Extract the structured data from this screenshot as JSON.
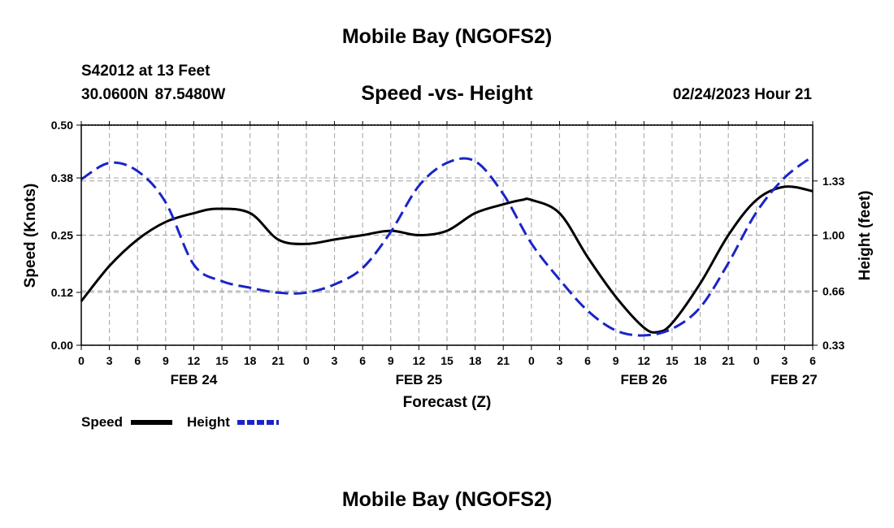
{
  "header": {
    "title": "Mobile Bay (NGOFS2)",
    "station": "S42012 at 13 Feet",
    "coords": "30.0600N  87.5480W",
    "subtitle": "Speed -vs- Height",
    "datetime": "02/24/2023 Hour 21"
  },
  "footer": {
    "title": "Mobile Bay (NGOFS2)"
  },
  "colors": {
    "speed": "#000000",
    "height": "#1a24c8",
    "grid": "#b0b0b0"
  },
  "chart_data": {
    "type": "line",
    "title": "Speed -vs- Height",
    "xlabel": "Forecast (Z)",
    "ylabel": "Speed (Knots)",
    "y2label": "Height (feet)",
    "xlim": [
      0,
      78
    ],
    "ylim": [
      0,
      0.5
    ],
    "y2lim": [
      0.33,
      1.67
    ],
    "y_ticks": [
      0.0,
      0.12,
      0.25,
      0.38,
      0.5
    ],
    "y_tick_labels": [
      "0.00",
      "0.12",
      "0.25",
      "0.38",
      "0.50"
    ],
    "y2_ticks": [
      0.33,
      0.66,
      1.0,
      1.33
    ],
    "y2_tick_labels": [
      "0.33",
      "0.66",
      "1.00",
      "1.33"
    ],
    "x_ticks": [
      0,
      3,
      6,
      9,
      12,
      15,
      18,
      21,
      24,
      27,
      30,
      33,
      36,
      39,
      42,
      45,
      48,
      51,
      54,
      57,
      60,
      63,
      66,
      69,
      72,
      75,
      78
    ],
    "x_tick_labels": [
      "0",
      "3",
      "6",
      "9",
      "12",
      "15",
      "18",
      "21",
      "0",
      "3",
      "6",
      "9",
      "12",
      "15",
      "18",
      "21",
      "0",
      "3",
      "6",
      "9",
      "12",
      "15",
      "18",
      "21",
      "0",
      "3",
      "6"
    ],
    "date_labels": [
      {
        "x": 12,
        "label": "FEB 24"
      },
      {
        "x": 36,
        "label": "FEB 25"
      },
      {
        "x": 60,
        "label": "FEB 26"
      },
      {
        "x": 76,
        "label": "FEB 27"
      }
    ],
    "grid": true,
    "series": [
      {
        "name": "Speed",
        "axis": "left",
        "style": "solid",
        "x": [
          0,
          3,
          6,
          9,
          12,
          14.5,
          18,
          21,
          24,
          27,
          30,
          33,
          36,
          39,
          42,
          45,
          47,
          48,
          51,
          54,
          57,
          60,
          61.5,
          63,
          66,
          69,
          72,
          75,
          78
        ],
        "values": [
          0.1,
          0.18,
          0.24,
          0.28,
          0.3,
          0.31,
          0.3,
          0.24,
          0.23,
          0.24,
          0.25,
          0.26,
          0.25,
          0.26,
          0.3,
          0.32,
          0.33,
          0.33,
          0.3,
          0.2,
          0.11,
          0.04,
          0.03,
          0.05,
          0.14,
          0.25,
          0.33,
          0.36,
          0.35
        ]
      },
      {
        "name": "Height",
        "axis": "right",
        "style": "dashed",
        "x": [
          0,
          3,
          6,
          9,
          12,
          15,
          18,
          21,
          24,
          27,
          30,
          33,
          36,
          39,
          42,
          45,
          48,
          51,
          54,
          57,
          60,
          63,
          66,
          69,
          72,
          75,
          78
        ],
        "values": [
          1.34,
          1.44,
          1.39,
          1.2,
          0.82,
          0.72,
          0.68,
          0.65,
          0.65,
          0.7,
          0.8,
          1.02,
          1.3,
          1.44,
          1.45,
          1.25,
          0.95,
          0.73,
          0.54,
          0.42,
          0.39,
          0.43,
          0.56,
          0.83,
          1.14,
          1.35,
          1.48
        ]
      }
    ]
  }
}
